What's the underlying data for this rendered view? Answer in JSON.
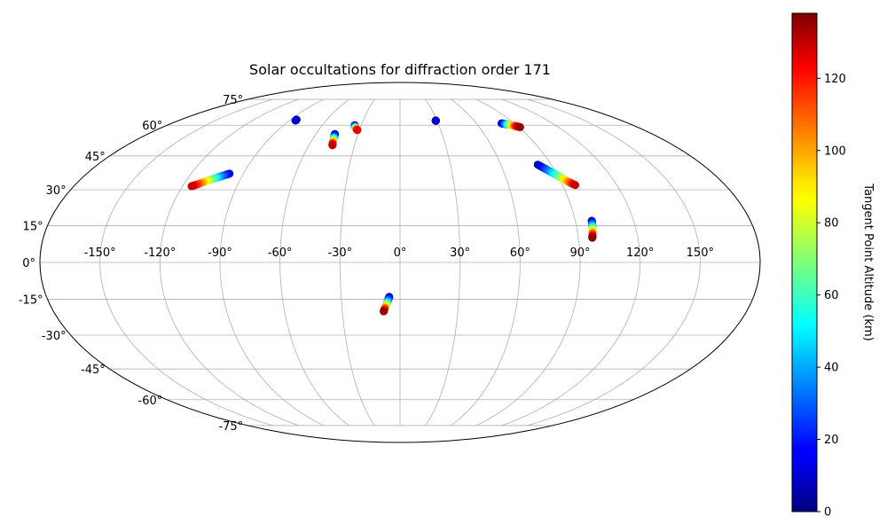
{
  "chart_data": {
    "type": "scatter",
    "projection": "mollweide",
    "title": "Solar occultations for diffraction order 171",
    "grid": true,
    "longitude_ticks": [
      "-150°",
      "-120°",
      "-90°",
      "-60°",
      "-30°",
      "0°",
      "30°",
      "60°",
      "90°",
      "120°",
      "150°"
    ],
    "latitude_ticks": [
      "-75°",
      "-60°",
      "-45°",
      "-30°",
      "-15°",
      "0°",
      "15°",
      "30°",
      "45°",
      "60°",
      "75°"
    ],
    "xlim": [
      -180,
      180
    ],
    "ylim": [
      -90,
      90
    ],
    "colorbar": {
      "label": "Tangent Point Altitude (km)",
      "colormap": "jet",
      "range": [
        0,
        138
      ],
      "ticks": [
        "0",
        "20",
        "40",
        "60",
        "80",
        "100",
        "120"
      ]
    },
    "series": [
      {
        "points": [
          {
            "lon": -85,
            "lat": 63,
            "alt": 5
          },
          {
            "lon": -85,
            "lat": 62.5,
            "alt": 10
          }
        ]
      },
      {
        "points": [
          {
            "lon": -98,
            "lat": 37,
            "alt": 10
          },
          {
            "lon": -103,
            "lat": 35.5,
            "alt": 40
          },
          {
            "lon": -108,
            "lat": 34,
            "alt": 80
          },
          {
            "lon": -112,
            "lat": 32.5,
            "alt": 110
          },
          {
            "lon": -115,
            "lat": 31.5,
            "alt": 130
          }
        ]
      },
      {
        "points": [
          {
            "lon": -46.5,
            "lat": 55.5,
            "alt": 5
          },
          {
            "lon": -46,
            "lat": 54,
            "alt": 30
          },
          {
            "lon": -45.5,
            "lat": 52.5,
            "alt": 70
          },
          {
            "lon": -45,
            "lat": 51,
            "alt": 110
          },
          {
            "lon": -44.5,
            "lat": 50,
            "alt": 130
          }
        ]
      },
      {
        "points": [
          {
            "lon": -35,
            "lat": 60,
            "alt": 5
          },
          {
            "lon": -34,
            "lat": 59,
            "alt": 40
          },
          {
            "lon": -32.5,
            "lat": 58,
            "alt": 100
          },
          {
            "lon": -31.5,
            "lat": 57.5,
            "alt": 125
          }
        ]
      },
      {
        "points": [
          {
            "lon": 29,
            "lat": 62.5,
            "alt": 5
          },
          {
            "lon": 29,
            "lat": 62.3,
            "alt": 10
          }
        ]
      },
      {
        "points": [
          {
            "lon": 80,
            "lat": 61,
            "alt": 5
          },
          {
            "lon": 83,
            "lat": 60.5,
            "alt": 40
          },
          {
            "lon": 86,
            "lat": 60,
            "alt": 80
          },
          {
            "lon": 89,
            "lat": 59.5,
            "alt": 120
          },
          {
            "lon": 91,
            "lat": 59,
            "alt": 135
          }
        ]
      },
      {
        "points": [
          {
            "lon": 82,
            "lat": 41,
            "alt": 5
          },
          {
            "lon": 86,
            "lat": 38.5,
            "alt": 30
          },
          {
            "lon": 90,
            "lat": 36,
            "alt": 60
          },
          {
            "lon": 94,
            "lat": 33.5,
            "alt": 100
          },
          {
            "lon": 97,
            "lat": 32,
            "alt": 130
          }
        ]
      },
      {
        "points": [
          {
            "lon": 98.5,
            "lat": 17,
            "alt": 5
          },
          {
            "lon": 98.2,
            "lat": 15,
            "alt": 40
          },
          {
            "lon": 97.8,
            "lat": 13,
            "alt": 80
          },
          {
            "lon": 97.3,
            "lat": 11,
            "alt": 120
          },
          {
            "lon": 97,
            "lat": 10,
            "alt": 135
          }
        ]
      },
      {
        "points": [
          {
            "lon": -5.5,
            "lat": -14,
            "alt": 5
          },
          {
            "lon": -6.5,
            "lat": -16,
            "alt": 40
          },
          {
            "lon": -7.5,
            "lat": -18,
            "alt": 90
          },
          {
            "lon": -8.5,
            "lat": -20,
            "alt": 135
          }
        ]
      }
    ]
  }
}
